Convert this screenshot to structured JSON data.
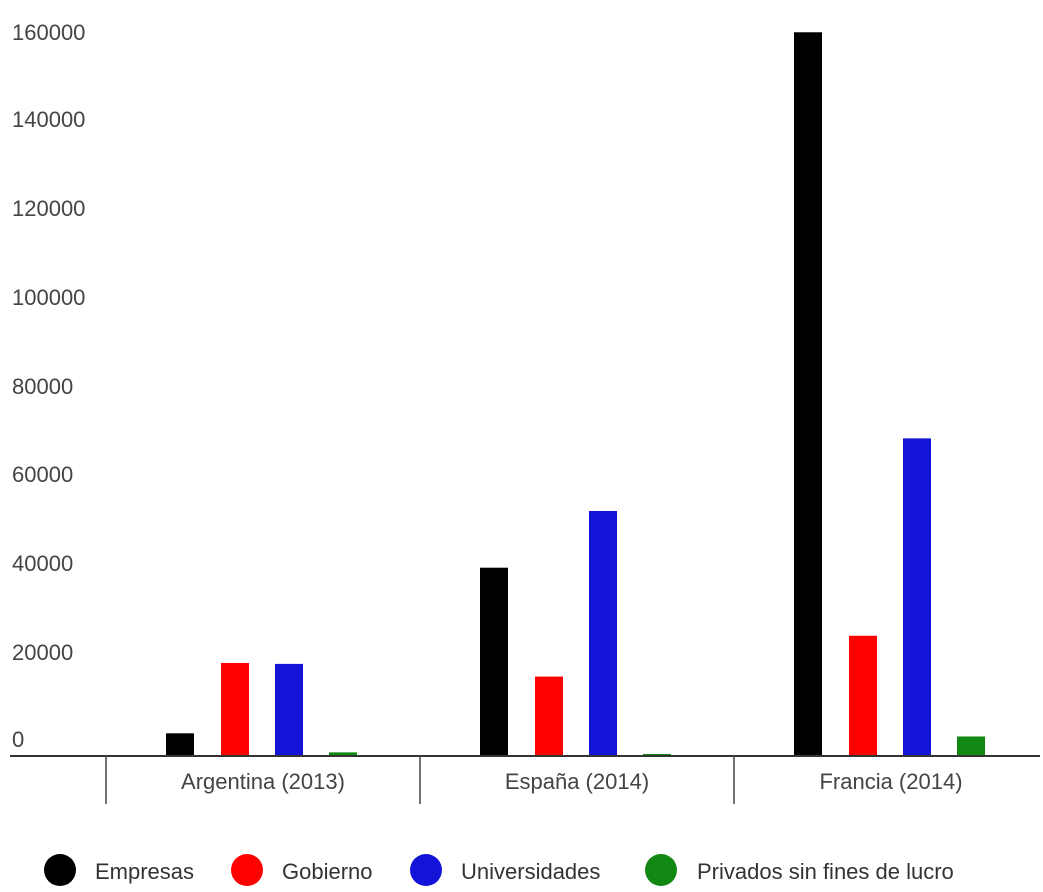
{
  "chart_data": {
    "type": "bar",
    "categories": [
      "Argentina (2013)",
      "España (2014)",
      "Francia (2014)"
    ],
    "series": [
      {
        "name": "Empresas",
        "color": "#000000",
        "values": [
          5000,
          41500,
          159500
        ]
      },
      {
        "name": "Gobierno",
        "color": "#ff0000",
        "values": [
          20500,
          17500,
          26500
        ]
      },
      {
        "name": "Universidades",
        "color": "#1414d9",
        "values": [
          20300,
          54000,
          70000
        ]
      },
      {
        "name": "Privados sin fines de lucro",
        "color": "#118811",
        "values": [
          800,
          400,
          4300
        ]
      }
    ],
    "y_ticks": [
      "160000",
      "140000",
      "120000",
      "100000",
      "80000",
      "60000",
      "40000",
      "20000",
      "0"
    ],
    "ylim": [
      0,
      160000
    ],
    "title": "",
    "xlabel": "",
    "ylabel": "",
    "grid": false,
    "legend_position": "bottom"
  }
}
